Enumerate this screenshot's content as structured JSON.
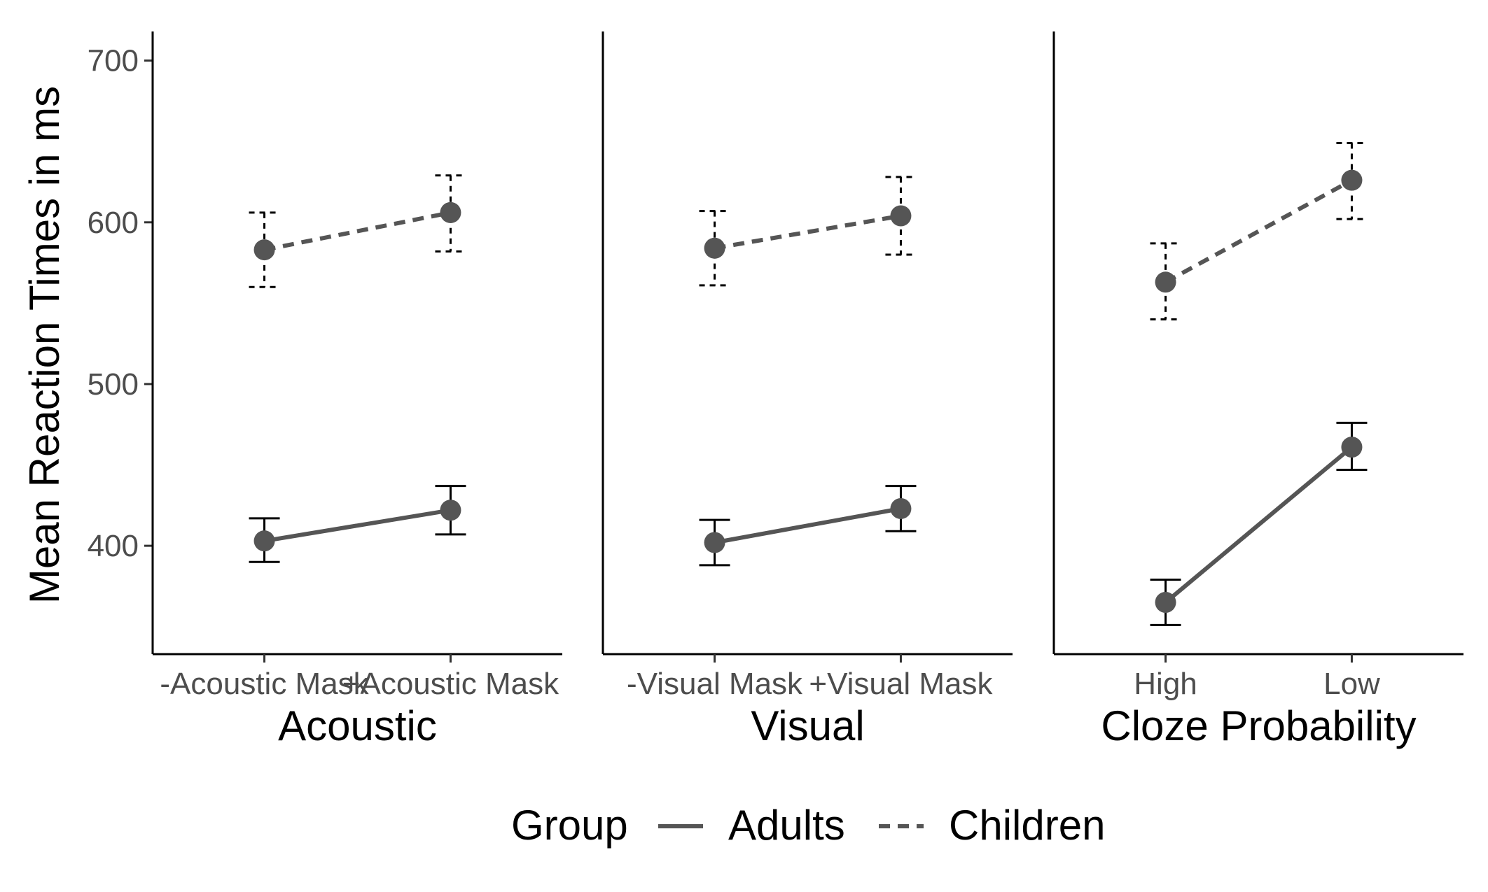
{
  "chart_data": {
    "type": "line",
    "y_axis": {
      "label": "Mean Reaction Times in ms",
      "ticks": [
        400,
        500,
        600,
        700
      ],
      "ylim": [
        333,
        718
      ]
    },
    "legend": {
      "title": "Group",
      "position": "bottom",
      "entries": [
        {
          "label": "Adults",
          "linetype": "solid"
        },
        {
          "label": "Children",
          "linetype": "dashed"
        }
      ]
    },
    "colors": {
      "line": "#555555",
      "point": "#555555",
      "errorbar": "#000000"
    },
    "panels": [
      {
        "xlabel": "Acoustic",
        "categories": [
          "-Acoustic Mask",
          "+Acoustic Mask"
        ],
        "series": [
          {
            "name": "Adults",
            "values": [
              403,
              422
            ],
            "lower": [
              390,
              407
            ],
            "upper": [
              417,
              437
            ]
          },
          {
            "name": "Children",
            "values": [
              583,
              606
            ],
            "lower": [
              560,
              582
            ],
            "upper": [
              606,
              629
            ]
          }
        ]
      },
      {
        "xlabel": "Visual",
        "categories": [
          "-Visual Mask",
          "+Visual Mask"
        ],
        "series": [
          {
            "name": "Adults",
            "values": [
              402,
              423
            ],
            "lower": [
              388,
              409
            ],
            "upper": [
              416,
              437
            ]
          },
          {
            "name": "Children",
            "values": [
              584,
              604
            ],
            "lower": [
              561,
              580
            ],
            "upper": [
              607,
              628
            ]
          }
        ]
      },
      {
        "xlabel": "Cloze Probability",
        "categories": [
          "High",
          "Low"
        ],
        "series": [
          {
            "name": "Adults",
            "values": [
              365,
              461
            ],
            "lower": [
              351,
              447
            ],
            "upper": [
              379,
              476
            ]
          },
          {
            "name": "Children",
            "values": [
              563,
              626
            ],
            "lower": [
              540,
              602
            ],
            "upper": [
              587,
              649
            ]
          }
        ]
      }
    ]
  }
}
